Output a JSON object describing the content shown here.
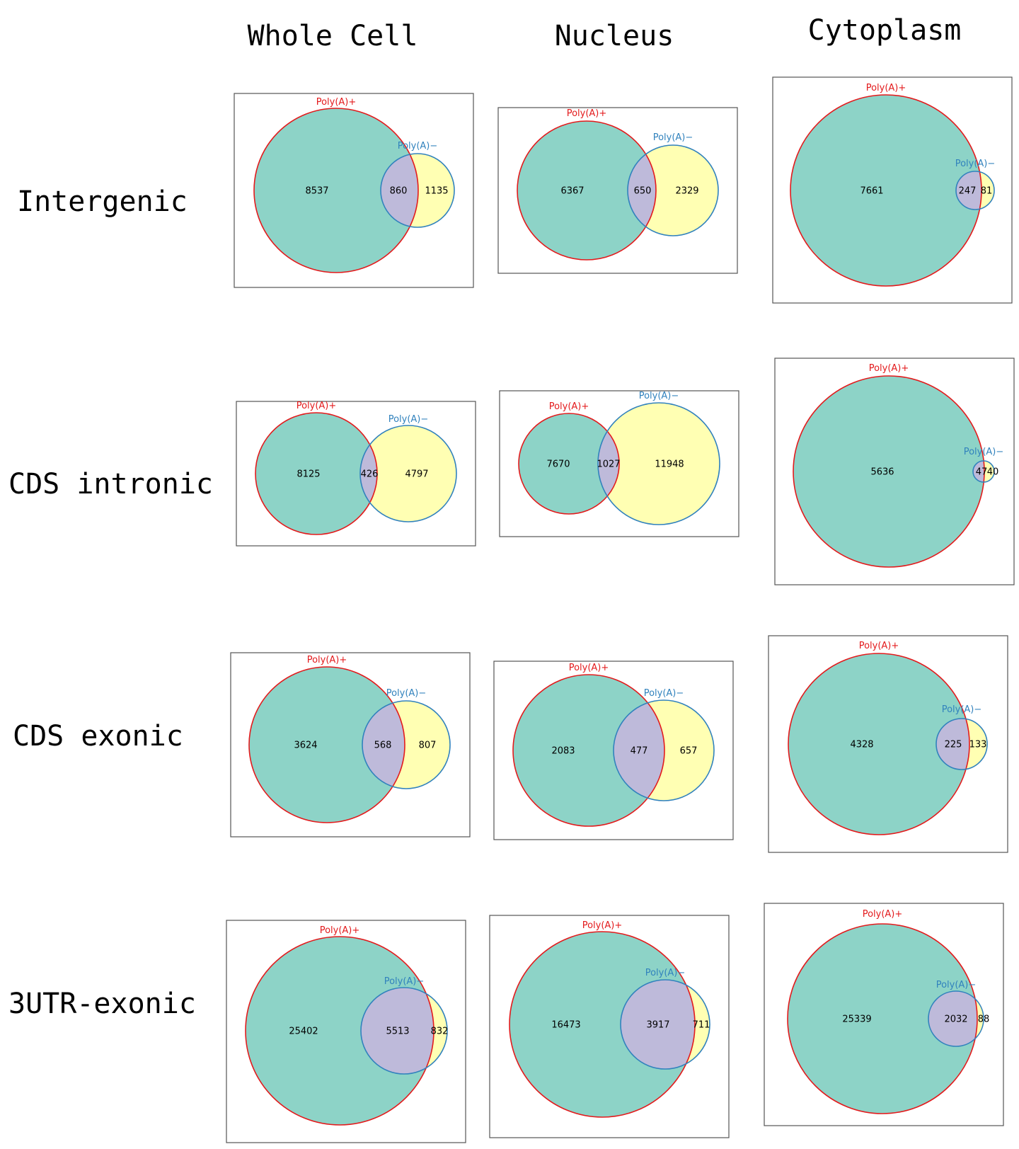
{
  "columns": [
    "Whole Cell",
    "Nucleus",
    "Cytoplasm"
  ],
  "rows": [
    "Intergenic",
    "CDS intronic",
    "CDS exonic",
    "3UTR-exonic"
  ],
  "colors": {
    "polyA_plus_fill": "#8dd3c7",
    "polyA_minus_fill": "#ffffb3",
    "overlap_fill": "#bebada",
    "polyA_plus_outline": "#e31a1c",
    "polyA_minus_outline": "#3182bd"
  },
  "chart_data": [
    {
      "type": "venn",
      "row": "Intergenic",
      "column": "Whole Cell",
      "sets": [
        "Poly(A)+",
        "Poly(A)−"
      ],
      "only_a": 8537,
      "both": 860,
      "only_b": 1135
    },
    {
      "type": "venn",
      "row": "Intergenic",
      "column": "Nucleus",
      "sets": [
        "Poly(A)+",
        "Poly(A)−"
      ],
      "only_a": 6367,
      "both": 650,
      "only_b": 2329
    },
    {
      "type": "venn",
      "row": "Intergenic",
      "column": "Cytoplasm",
      "sets": [
        "Poly(A)+",
        "Poly(A)−"
      ],
      "only_a": 7661,
      "both": 247,
      "only_b": 81
    },
    {
      "type": "venn",
      "row": "CDS intronic",
      "column": "Whole Cell",
      "sets": [
        "Poly(A)+",
        "Poly(A)−"
      ],
      "only_a": 8125,
      "both": 426,
      "only_b": 4797
    },
    {
      "type": "venn",
      "row": "CDS intronic",
      "column": "Nucleus",
      "sets": [
        "Poly(A)+",
        "Poly(A)−"
      ],
      "only_a": 7670,
      "both": 1027,
      "only_b": 11948
    },
    {
      "type": "venn",
      "row": "CDS intronic",
      "column": "Cytoplasm",
      "sets": [
        "Poly(A)+",
        "Poly(A)−"
      ],
      "only_a": 5636,
      "both": 47,
      "only_b": 40
    },
    {
      "type": "venn",
      "row": "CDS exonic",
      "column": "Whole Cell",
      "sets": [
        "Poly(A)+",
        "Poly(A)−"
      ],
      "only_a": 3624,
      "both": 568,
      "only_b": 807
    },
    {
      "type": "venn",
      "row": "CDS exonic",
      "column": "Nucleus",
      "sets": [
        "Poly(A)+",
        "Poly(A)−"
      ],
      "only_a": 2083,
      "both": 477,
      "only_b": 657
    },
    {
      "type": "venn",
      "row": "CDS exonic",
      "column": "Cytoplasm",
      "sets": [
        "Poly(A)+",
        "Poly(A)−"
      ],
      "only_a": 4328,
      "both": 225,
      "only_b": 133
    },
    {
      "type": "venn",
      "row": "3UTR-exonic",
      "column": "Whole Cell",
      "sets": [
        "Poly(A)+",
        "Poly(A)−"
      ],
      "only_a": 25402,
      "both": 5513,
      "only_b": 832
    },
    {
      "type": "venn",
      "row": "3UTR-exonic",
      "column": "Nucleus",
      "sets": [
        "Poly(A)+",
        "Poly(A)−"
      ],
      "only_a": 16473,
      "both": 3917,
      "only_b": 711
    },
    {
      "type": "venn",
      "row": "3UTR-exonic",
      "column": "Cytoplasm",
      "sets": [
        "Poly(A)+",
        "Poly(A)−"
      ],
      "only_a": 25339,
      "both": 2032,
      "only_b": 88
    }
  ]
}
